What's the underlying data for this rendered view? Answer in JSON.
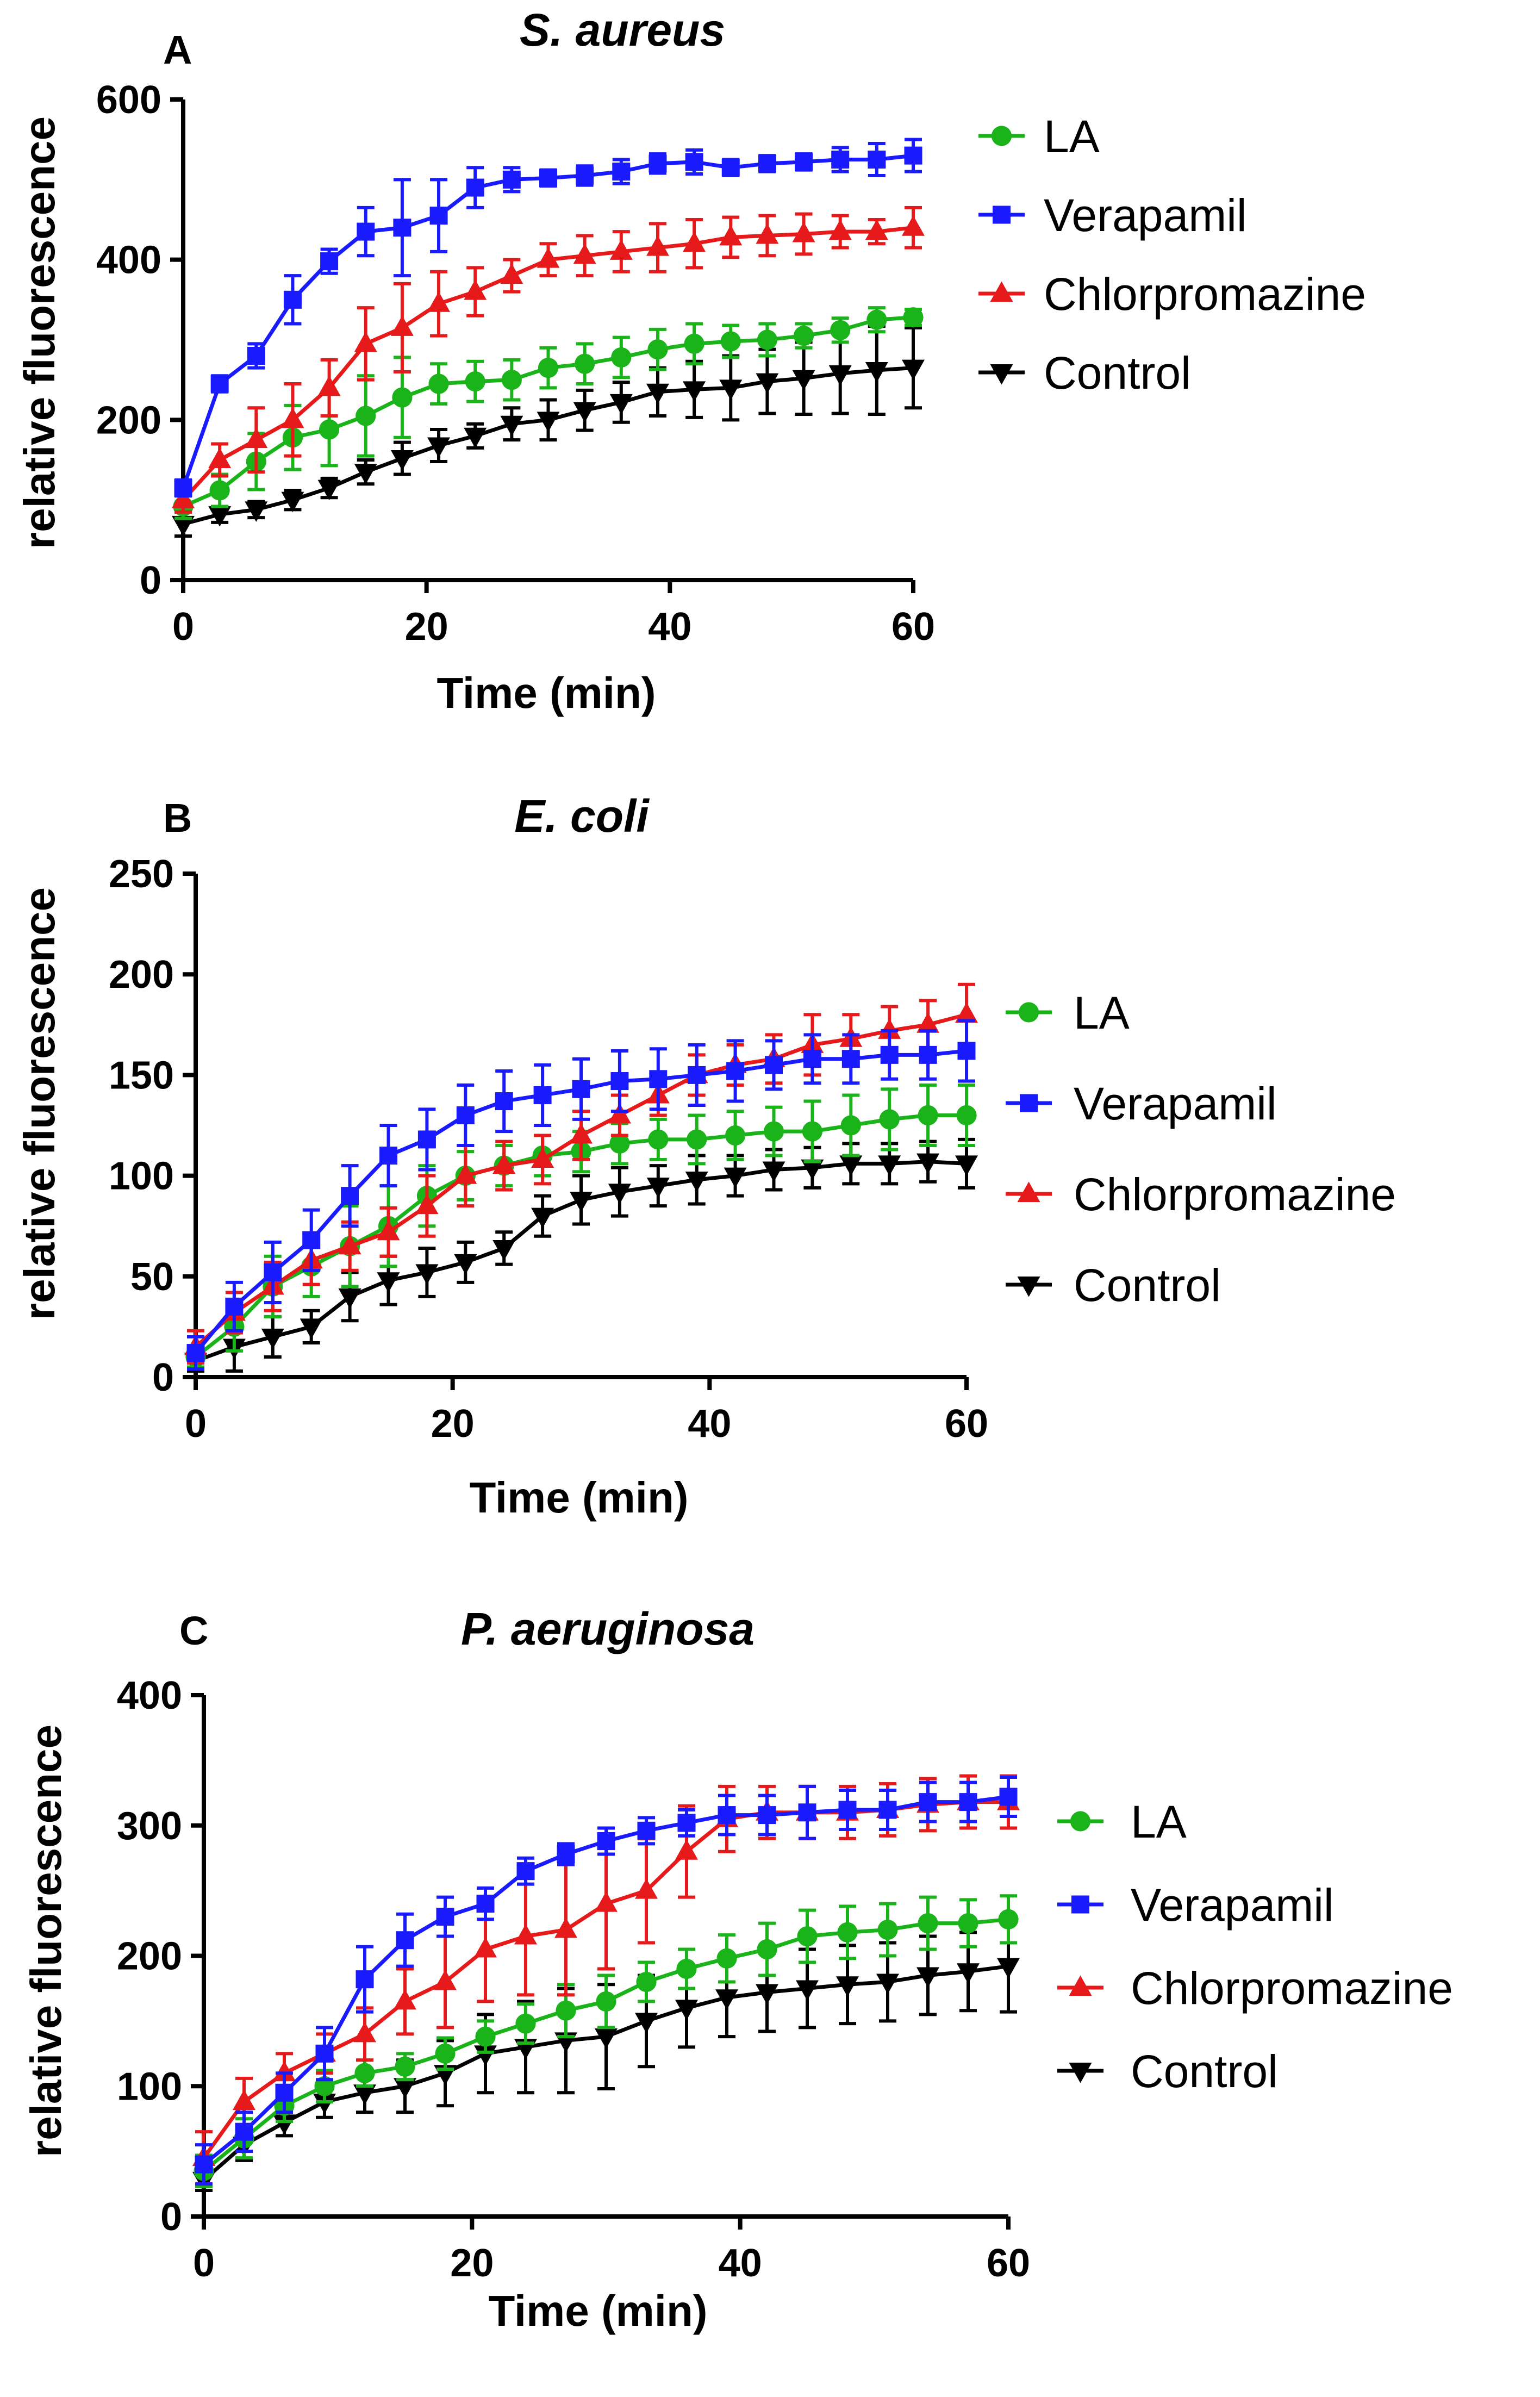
{
  "chart_data": [
    {
      "type": "line",
      "panel_label": "A",
      "title": "S. aureus",
      "xlabel": "Time (min)",
      "ylabel": "relative fluorescence",
      "xlim": [
        0,
        60
      ],
      "ylim": [
        0,
        600
      ],
      "xticks": [
        0,
        20,
        40,
        60
      ],
      "yticks": [
        0,
        200,
        400,
        600
      ],
      "legend_position": "right",
      "series": [
        {
          "name": "LA",
          "marker": "circle",
          "color": "#1ab31a",
          "x": [
            0,
            3,
            6,
            9,
            12,
            15,
            18,
            21,
            24,
            27,
            30,
            33,
            36,
            39,
            42,
            45,
            48,
            51,
            54,
            57,
            60
          ],
          "y": [
            92,
            112,
            148,
            178,
            188,
            205,
            228,
            245,
            248,
            250,
            265,
            270,
            278,
            288,
            295,
            298,
            300,
            305,
            312,
            325,
            328
          ],
          "err": [
            15,
            20,
            35,
            40,
            45,
            50,
            50,
            25,
            25,
            25,
            25,
            25,
            25,
            25,
            25,
            20,
            20,
            15,
            15,
            15,
            10
          ]
        },
        {
          "name": "Verapamil",
          "marker": "square",
          "color": "#1a1aff",
          "x": [
            0,
            3,
            6,
            9,
            12,
            15,
            18,
            21,
            24,
            27,
            30,
            33,
            36,
            39,
            42,
            45,
            48,
            51,
            54,
            57,
            60
          ],
          "y": [
            115,
            245,
            280,
            350,
            398,
            435,
            440,
            455,
            490,
            500,
            502,
            505,
            510,
            520,
            522,
            515,
            520,
            522,
            525,
            525,
            530
          ],
          "err": [
            10,
            10,
            15,
            30,
            15,
            30,
            60,
            45,
            25,
            15,
            10,
            12,
            15,
            12,
            15,
            10,
            10,
            10,
            15,
            20,
            20
          ],
          "connect_from": 0
        },
        {
          "name": "Chlorpromazine",
          "marker": "triangle-up",
          "color": "#e61a1a",
          "x": [
            0,
            3,
            6,
            9,
            12,
            15,
            18,
            21,
            24,
            27,
            30,
            33,
            36,
            39,
            42,
            45,
            48,
            51,
            54,
            57,
            60
          ],
          "y": [
            100,
            150,
            175,
            200,
            240,
            295,
            315,
            345,
            360,
            380,
            400,
            405,
            410,
            415,
            420,
            428,
            430,
            432,
            435,
            435,
            440
          ],
          "err": [
            15,
            20,
            40,
            45,
            35,
            45,
            55,
            40,
            30,
            20,
            20,
            25,
            25,
            30,
            30,
            25,
            25,
            25,
            20,
            15,
            25
          ]
        },
        {
          "name": "Control",
          "marker": "triangle-down",
          "color": "#000000",
          "x": [
            0,
            3,
            6,
            9,
            12,
            15,
            18,
            21,
            24,
            27,
            30,
            33,
            36,
            39,
            42,
            45,
            48,
            51,
            54,
            57,
            60
          ],
          "y": [
            70,
            82,
            88,
            100,
            115,
            135,
            152,
            168,
            180,
            195,
            200,
            212,
            222,
            235,
            238,
            240,
            248,
            252,
            258,
            262,
            265
          ],
          "err": [
            15,
            10,
            10,
            12,
            12,
            15,
            20,
            20,
            15,
            20,
            25,
            25,
            25,
            30,
            35,
            40,
            40,
            45,
            50,
            55,
            50
          ]
        }
      ]
    },
    {
      "type": "line",
      "panel_label": "B",
      "title": "E. coli",
      "xlabel": "Time (min)",
      "ylabel": "relative fluorescence",
      "xlim": [
        0,
        60
      ],
      "ylim": [
        0,
        250
      ],
      "xticks": [
        0,
        20,
        40,
        60
      ],
      "yticks": [
        0,
        50,
        100,
        150,
        200,
        250
      ],
      "legend_position": "right",
      "series": [
        {
          "name": "LA",
          "marker": "circle",
          "color": "#1ab31a",
          "x": [
            0,
            3,
            6,
            9,
            12,
            15,
            18,
            21,
            24,
            27,
            30,
            33,
            36,
            39,
            42,
            45,
            48,
            51,
            54,
            57,
            60
          ],
          "y": [
            10,
            25,
            45,
            55,
            65,
            75,
            90,
            100,
            105,
            110,
            112,
            116,
            118,
            118,
            120,
            122,
            122,
            125,
            128,
            130,
            130
          ],
          "err": [
            5,
            12,
            15,
            15,
            20,
            20,
            15,
            12,
            10,
            10,
            10,
            10,
            10,
            12,
            12,
            12,
            15,
            15,
            15,
            15,
            15
          ]
        },
        {
          "name": "Verapamil",
          "marker": "square",
          "color": "#1a1aff",
          "x": [
            0,
            3,
            6,
            9,
            12,
            15,
            18,
            21,
            24,
            27,
            30,
            33,
            36,
            39,
            42,
            45,
            48,
            51,
            54,
            57,
            60
          ],
          "y": [
            12,
            35,
            52,
            68,
            90,
            110,
            118,
            130,
            137,
            140,
            143,
            147,
            148,
            150,
            152,
            155,
            158,
            158,
            160,
            160,
            162
          ],
          "err": [
            8,
            12,
            15,
            15,
            15,
            15,
            15,
            15,
            15,
            15,
            15,
            15,
            15,
            15,
            15,
            12,
            12,
            12,
            12,
            12,
            15
          ]
        },
        {
          "name": "Chlorpromazine",
          "marker": "triangle-up",
          "color": "#e61a1a",
          "x": [
            0,
            3,
            6,
            9,
            12,
            15,
            18,
            21,
            24,
            27,
            30,
            33,
            36,
            39,
            42,
            45,
            48,
            51,
            54,
            57,
            60
          ],
          "y": [
            15,
            32,
            45,
            58,
            65,
            72,
            85,
            100,
            105,
            108,
            120,
            130,
            140,
            150,
            155,
            158,
            165,
            168,
            172,
            175,
            180
          ],
          "err": [
            8,
            10,
            12,
            12,
            12,
            12,
            15,
            15,
            12,
            12,
            12,
            10,
            10,
            10,
            10,
            12,
            15,
            12,
            12,
            12,
            15
          ]
        },
        {
          "name": "Control",
          "marker": "triangle-down",
          "color": "#000000",
          "x": [
            0,
            3,
            6,
            9,
            12,
            15,
            18,
            21,
            24,
            27,
            30,
            33,
            36,
            39,
            42,
            45,
            48,
            51,
            54,
            57,
            60
          ],
          "y": [
            8,
            15,
            20,
            25,
            40,
            48,
            52,
            57,
            64,
            80,
            88,
            92,
            95,
            98,
            100,
            103,
            104,
            106,
            106,
            107,
            106
          ],
          "err": [
            5,
            12,
            10,
            8,
            12,
            12,
            12,
            10,
            8,
            10,
            12,
            12,
            10,
            12,
            10,
            10,
            10,
            10,
            10,
            10,
            12
          ]
        }
      ]
    },
    {
      "type": "line",
      "panel_label": "C",
      "title": "P. aeruginosa",
      "xlabel": "Time (min)",
      "ylabel": "relative fluorescence",
      "xlim": [
        0,
        60
      ],
      "ylim": [
        0,
        400
      ],
      "xticks": [
        0,
        20,
        40,
        60
      ],
      "yticks": [
        0,
        100,
        200,
        300,
        400
      ],
      "legend_position": "right",
      "series": [
        {
          "name": "LA",
          "marker": "circle",
          "color": "#1ab31a",
          "x": [
            0,
            3,
            6,
            9,
            12,
            15,
            18,
            21,
            24,
            27,
            30,
            33,
            36,
            39,
            42,
            45,
            48,
            51,
            54,
            57,
            60
          ],
          "y": [
            35,
            60,
            85,
            100,
            110,
            115,
            125,
            138,
            148,
            158,
            165,
            180,
            190,
            198,
            205,
            215,
            218,
            220,
            225,
            225,
            228
          ],
          "err": [
            12,
            15,
            12,
            12,
            10,
            10,
            12,
            12,
            15,
            20,
            20,
            15,
            15,
            18,
            20,
            20,
            20,
            20,
            20,
            18,
            18
          ]
        },
        {
          "name": "Verapamil",
          "marker": "square",
          "color": "#1a1aff",
          "x": [
            0,
            3,
            6,
            9,
            12,
            15,
            18,
            21,
            24,
            27,
            30,
            33,
            36,
            39,
            42,
            45,
            48,
            51,
            54,
            57,
            60
          ],
          "y": [
            40,
            65,
            95,
            125,
            182,
            212,
            230,
            240,
            265,
            278,
            288,
            296,
            302,
            308,
            308,
            310,
            312,
            312,
            318,
            318,
            322
          ],
          "err": [
            15,
            15,
            15,
            20,
            25,
            20,
            15,
            12,
            10,
            8,
            10,
            10,
            10,
            15,
            15,
            20,
            15,
            15,
            15,
            15,
            15
          ]
        },
        {
          "name": "Chlorpromazine",
          "marker": "triangle-up",
          "color": "#e61a1a",
          "x": [
            0,
            3,
            6,
            9,
            12,
            15,
            18,
            21,
            24,
            27,
            30,
            33,
            36,
            39,
            42,
            45,
            48,
            51,
            54,
            57,
            60
          ],
          "y": [
            45,
            88,
            110,
            125,
            140,
            165,
            180,
            205,
            215,
            220,
            240,
            250,
            280,
            305,
            310,
            310,
            310,
            312,
            316,
            318,
            318
          ],
          "err": [
            20,
            18,
            15,
            15,
            20,
            25,
            35,
            40,
            45,
            50,
            50,
            40,
            35,
            25,
            20,
            20,
            20,
            20,
            20,
            20,
            20
          ]
        },
        {
          "name": "Control",
          "marker": "triangle-down",
          "color": "#000000",
          "x": [
            0,
            3,
            6,
            9,
            12,
            15,
            18,
            21,
            24,
            27,
            30,
            33,
            36,
            39,
            42,
            45,
            48,
            51,
            54,
            57,
            60
          ],
          "y": [
            28,
            55,
            72,
            88,
            95,
            100,
            110,
            125,
            130,
            135,
            138,
            150,
            160,
            168,
            172,
            175,
            178,
            180,
            185,
            188,
            192
          ],
          "err": [
            8,
            12,
            10,
            12,
            15,
            20,
            25,
            30,
            35,
            40,
            40,
            35,
            30,
            30,
            30,
            30,
            30,
            30,
            30,
            30,
            35
          ]
        }
      ]
    }
  ]
}
